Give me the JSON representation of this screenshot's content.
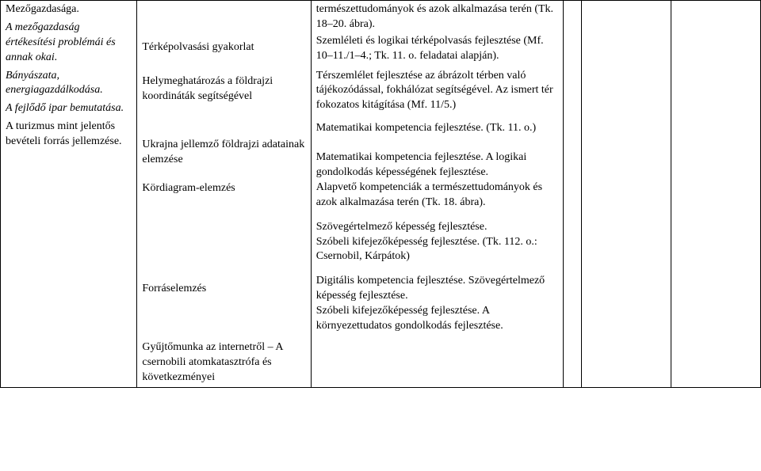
{
  "table": {
    "col1": {
      "lines": [
        "Mezőgazdasága.",
        "A mezőgazdaság értékesítési problémái és annak okai.",
        "Bányászata, energiagazdálkodása.",
        "A fejlődő ipar bemutatása.",
        "A turizmus mint jelentős bevételi forrás jellemzése."
      ]
    },
    "col2": {
      "blocks": [
        {
          "spacer": 48,
          "text": "Térképolvasási gyakorlat"
        },
        {
          "spacer": 24,
          "text": "Helymeghatározás a földrajzi koordináták segítségével"
        },
        {
          "spacer": 42,
          "text": "Ukrajna jellemző földrajzi adatainak elemzése"
        },
        {
          "spacer": 18,
          "text": "Kördiagram-elemzés"
        },
        {
          "spacer": 108,
          "text": "Forráselemzés"
        },
        {
          "spacer": 55,
          "text": "Gyűjtőmunka az internetről – A csernobili atomkatasztrófa és következményei"
        }
      ]
    },
    "col3": {
      "blocks": [
        {
          "spacer": 0,
          "text": "természettudományok és azok alkalmazása terén (Tk. 18–20. ábra)."
        },
        {
          "spacer": 2,
          "text": "Szemléleti és logikai térképolvasás fejlesztése (Mf. 10–11./1–4.; Tk. 11. o. feladatai alapján)."
        },
        {
          "spacer": 6,
          "text": "Térszemlélet fejlesztése az ábrázolt térben való tájékozódással, fokhálózat segítségével. Az ismert tér fokozatos kitágítása (Mf. 11/5.)"
        },
        {
          "spacer": 10,
          "text": "Matematikai kompetencia fejlesztése. (Tk. 11. o.)"
        },
        {
          "spacer": 18,
          "text": "Matematikai kompetencia fejlesztése. A logikai gondolkodás képességének fejlesztése.\nAlapvető kompetenciák a természettudományok és azok alkalmazása terén (Tk. 18. ábra)."
        },
        {
          "spacer": 12,
          "text": "Szövegértelmező képesség fejlesztése.\nSzóbeli kifejezőképesség fejlesztése. (Tk. 112. o.: Csernobil, Kárpátok)"
        },
        {
          "spacer": 12,
          "text": "Digitális kompetencia fejlesztése. Szövegértelmező képesség fejlesztése.\nSzóbeli kifejezőképesség fejlesztése. A környezettudatos gondolkodás fejlesztése."
        }
      ]
    }
  }
}
